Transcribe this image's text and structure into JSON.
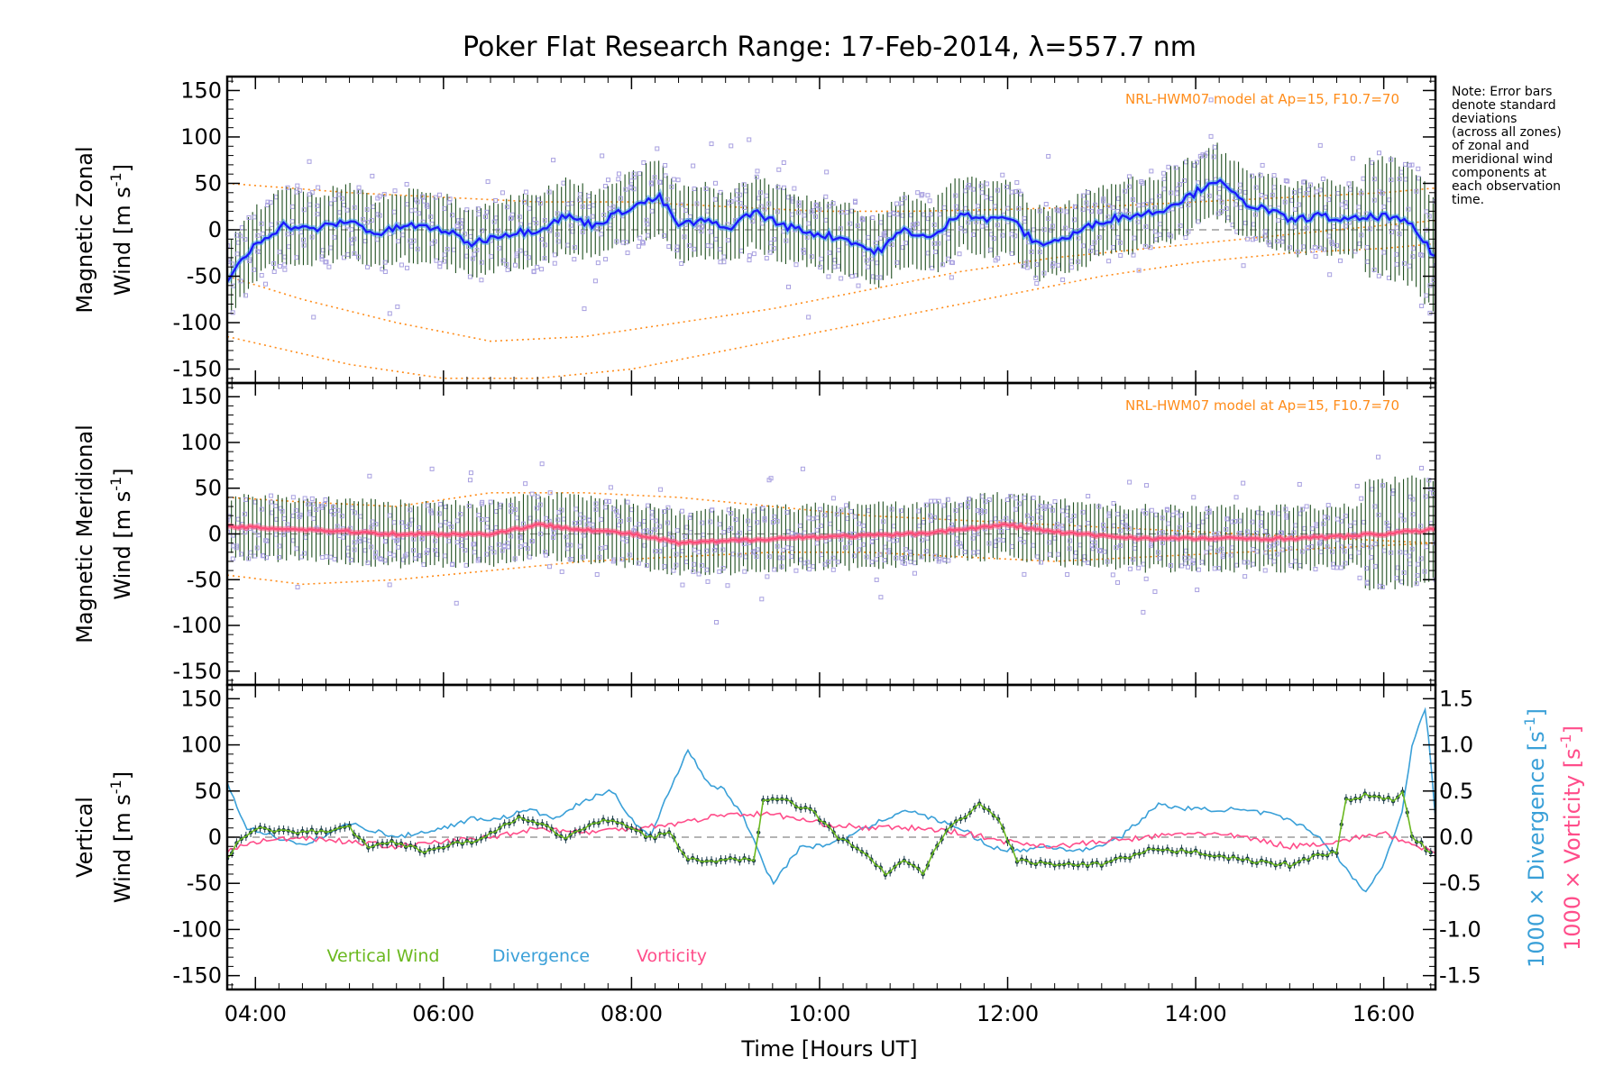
{
  "chart_data": {
    "title": "Poker Flat Research Range: 17-Feb-2014, λ=557.7 nm",
    "type": "line",
    "x_axis": {
      "label": "Time [Hours UT]",
      "range": [
        3.7,
        16.55
      ],
      "ticks": [
        4,
        6,
        8,
        10,
        12,
        14,
        16
      ],
      "tick_labels": [
        "04:00",
        "06:00",
        "08:00",
        "10:00",
        "12:00",
        "14:00",
        "16:00"
      ]
    },
    "note": [
      "Note: Error bars",
      "denote standard",
      "deviations",
      "(across all zones)",
      "of zonal and",
      "meridional wind",
      "components at",
      "each observation",
      "time."
    ],
    "colors": {
      "zonal": "#1a1aff",
      "zonal_fill": "#3aa0e8",
      "meridional": "#ff4d7a",
      "model": "#ff8c1a",
      "zones": "#a8a0e0",
      "vertical": "#6ab81e",
      "vertical_points": "#1a3a4a",
      "divergence": "#3aa0d8",
      "vorticity": "#ff4d8a",
      "errorbar": "#1f4f1f"
    },
    "panels": [
      {
        "id": "zonal",
        "ylabel_line1": "Magnetic Zonal",
        "ylabel_line2": "Wind",
        "ylabel_unit": "[m s",
        "ylabel_exp": "-1",
        "ylabel_close": "]",
        "ylim": [
          -165,
          165
        ],
        "yticks": [
          -150,
          -100,
          -50,
          0,
          50,
          100,
          150
        ],
        "model_label": "NRL-HWM07 model at Ap=15, F10.7=70",
        "series": {
          "name": "",
          "x": [
            3.7,
            4.0,
            4.3,
            4.6,
            5.0,
            5.3,
            5.6,
            6.0,
            6.3,
            6.6,
            7.0,
            7.3,
            7.6,
            8.0,
            8.3,
            8.5,
            8.8,
            9.0,
            9.3,
            9.6,
            10.0,
            10.3,
            10.6,
            10.9,
            11.2,
            11.5,
            11.8,
            12.0,
            12.3,
            12.6,
            13.0,
            13.3,
            13.6,
            14.0,
            14.2,
            14.5,
            14.8,
            15.0,
            15.3,
            15.6,
            16.0,
            16.3,
            16.55
          ],
          "y": [
            -55,
            -15,
            5,
            0,
            10,
            -5,
            5,
            0,
            -15,
            -5,
            0,
            15,
            5,
            25,
            35,
            5,
            10,
            0,
            20,
            5,
            -5,
            -10,
            -25,
            0,
            -10,
            20,
            10,
            15,
            -15,
            -10,
            10,
            15,
            20,
            40,
            55,
            30,
            20,
            10,
            15,
            10,
            15,
            5,
            -30
          ]
        },
        "model_lines": [
          {
            "x": [
              3.7,
              5.0,
              6.0,
              7.0,
              8.0,
              9.0,
              10.0,
              11.0,
              12.0,
              13.0,
              14.0,
              15.0,
              16.0,
              16.55
            ],
            "y": [
              -115,
              -145,
              -160,
              -160,
              -150,
              -130,
              -110,
              -90,
              -70,
              -50,
              -35,
              -25,
              -20,
              -15
            ]
          },
          {
            "x": [
              3.7,
              4.5,
              5.5,
              6.5,
              7.5,
              8.5,
              9.5,
              10.5,
              11.5,
              12.5,
              13.5,
              14.5,
              15.5,
              16.55
            ],
            "y": [
              -50,
              -75,
              -100,
              -120,
              -115,
              -100,
              -85,
              -65,
              -45,
              -30,
              -20,
              -10,
              0,
              10
            ]
          },
          {
            "x": [
              3.7,
              5.0,
              6.0,
              7.0,
              8.0,
              9.0,
              10.0,
              11.0,
              12.0,
              13.0,
              14.0,
              15.0,
              16.0,
              16.55
            ],
            "y": [
              50,
              40,
              35,
              30,
              30,
              25,
              20,
              20,
              22,
              25,
              30,
              35,
              40,
              45
            ]
          }
        ]
      },
      {
        "id": "meridional",
        "ylabel_line1": "Magnetic Meridional",
        "ylabel_line2": "Wind",
        "ylabel_unit": "[m s",
        "ylabel_exp": "-1",
        "ylabel_close": "]",
        "ylim": [
          -165,
          165
        ],
        "yticks": [
          -150,
          -100,
          -50,
          0,
          50,
          100,
          150
        ],
        "model_label": "NRL-HWM07 model at Ap=15, F10.7=70",
        "series": {
          "name": "",
          "x": [
            3.7,
            4.5,
            5.5,
            6.5,
            7.0,
            7.5,
            8.0,
            8.5,
            9.0,
            9.5,
            10.0,
            10.5,
            11.0,
            11.5,
            12.0,
            12.5,
            13.0,
            13.5,
            14.0,
            14.5,
            15.0,
            15.5,
            16.0,
            16.55
          ],
          "y": [
            8,
            5,
            0,
            0,
            10,
            5,
            0,
            -10,
            -8,
            -5,
            -3,
            -2,
            0,
            5,
            10,
            2,
            -2,
            -5,
            -5,
            -5,
            -5,
            -3,
            0,
            5
          ]
        },
        "model_lines": [
          {
            "x": [
              3.7,
              4.5,
              5.5,
              6.5,
              7.5,
              8.5,
              9.5,
              10.5,
              11.5,
              12.5,
              13.5,
              14.5,
              15.5,
              16.55
            ],
            "y": [
              40,
              35,
              30,
              45,
              45,
              40,
              30,
              20,
              15,
              10,
              5,
              0,
              -5,
              -10
            ]
          },
          {
            "x": [
              3.7,
              4.5,
              5.5,
              6.5,
              7.5,
              8.5,
              9.5,
              10.5,
              11.5,
              12.5,
              13.5,
              14.5,
              15.5,
              16.55
            ],
            "y": [
              -45,
              -55,
              -50,
              -40,
              -30,
              -25,
              -20,
              -20,
              -25,
              -30,
              -25,
              -20,
              -15,
              -10
            ]
          }
        ]
      },
      {
        "id": "vertical",
        "ylabel_line1": "Vertical",
        "ylabel_line2": "Wind",
        "ylabel_unit": "[m s",
        "ylabel_exp": "-1",
        "ylabel_close": "]",
        "ylim": [
          -165,
          165
        ],
        "yticks": [
          -150,
          -100,
          -50,
          0,
          50,
          100,
          150
        ],
        "right_axis": {
          "ylim": [
            -1.65,
            1.65
          ],
          "ticks": [
            -1.5,
            -1.0,
            -0.5,
            0.0,
            0.5,
            1.0,
            1.5
          ],
          "tick_labels": [
            "-1.5",
            "-1.0",
            "-0.5",
            "0.0",
            "0.5",
            "1.0",
            "1.5"
          ],
          "label_divergence": "1000 × Divergence [s",
          "label_vorticity": "1000 × Vorticity [s",
          "label_exp": "-1",
          "label_close": "]"
        },
        "legend": [
          "Vertical Wind",
          "Divergence",
          "Vorticity"
        ],
        "series": [
          {
            "name": "Vertical Wind",
            "x": [
              3.7,
              3.85,
              4.0,
              4.5,
              5.0,
              5.2,
              5.5,
              5.8,
              6.0,
              6.3,
              6.6,
              6.8,
              7.0,
              7.3,
              7.5,
              7.8,
              8.0,
              8.2,
              8.4,
              8.6,
              9.0,
              9.3,
              9.4,
              9.6,
              9.9,
              10.2,
              10.5,
              10.7,
              10.9,
              11.1,
              11.3,
              11.5,
              11.7,
              11.9,
              12.1,
              12.5,
              13.0,
              13.5,
              14.0,
              14.5,
              15.0,
              15.3,
              15.5,
              15.6,
              15.8,
              16.1,
              16.2,
              16.3,
              16.55
            ],
            "y": [
              -25,
              0,
              10,
              5,
              10,
              -10,
              -5,
              -15,
              -10,
              -5,
              10,
              20,
              15,
              0,
              10,
              20,
              10,
              0,
              5,
              -25,
              -25,
              -25,
              40,
              40,
              30,
              0,
              -20,
              -40,
              -25,
              -40,
              0,
              20,
              35,
              20,
              -25,
              -30,
              -30,
              -15,
              -15,
              -25,
              -30,
              -20,
              -15,
              40,
              45,
              40,
              50,
              0,
              -20
            ]
          },
          {
            "name": "Divergence",
            "x": [
              3.7,
              3.9,
              4.1,
              4.5,
              5.0,
              5.5,
              6.0,
              6.3,
              6.6,
              6.9,
              7.2,
              7.5,
              7.8,
              8.0,
              8.2,
              8.4,
              8.6,
              8.8,
              9.0,
              9.2,
              9.5,
              9.8,
              10.0,
              10.3,
              10.6,
              10.9,
              11.2,
              11.5,
              11.8,
              12.1,
              12.4,
              12.8,
              13.2,
              13.6,
              14.0,
              14.4,
              14.8,
              15.2,
              15.5,
              15.8,
              16.0,
              16.2,
              16.3,
              16.45,
              16.55
            ],
            "y": [
              0.6,
              0.1,
              0.05,
              -0.1,
              0.15,
              0.0,
              0.1,
              0.2,
              0.2,
              0.3,
              0.2,
              0.4,
              0.5,
              0.2,
              0.0,
              0.5,
              0.95,
              0.6,
              0.5,
              0.2,
              -0.5,
              -0.1,
              -0.1,
              0.0,
              0.15,
              0.3,
              0.2,
              0.1,
              -0.1,
              -0.15,
              -0.1,
              -0.15,
              0.0,
              0.35,
              0.3,
              0.3,
              0.25,
              0.1,
              -0.2,
              -0.6,
              -0.3,
              0.3,
              1.0,
              1.4,
              0.2
            ]
          },
          {
            "name": "Vorticity",
            "x": [
              3.7,
              4.0,
              4.5,
              5.0,
              5.5,
              6.0,
              6.5,
              7.0,
              7.5,
              8.0,
              8.5,
              9.0,
              9.5,
              10.0,
              10.5,
              11.0,
              11.5,
              12.0,
              12.5,
              13.0,
              13.5,
              14.0,
              14.5,
              15.0,
              15.5,
              16.0,
              16.3,
              16.55
            ],
            "y": [
              -0.15,
              -0.05,
              0.0,
              -0.05,
              -0.1,
              -0.05,
              0.0,
              0.1,
              0.05,
              0.1,
              0.15,
              0.25,
              0.25,
              0.15,
              0.1,
              0.1,
              0.05,
              -0.05,
              -0.1,
              -0.05,
              0.0,
              0.05,
              0.0,
              -0.1,
              -0.05,
              0.05,
              -0.1,
              -0.15
            ]
          }
        ]
      }
    ]
  }
}
